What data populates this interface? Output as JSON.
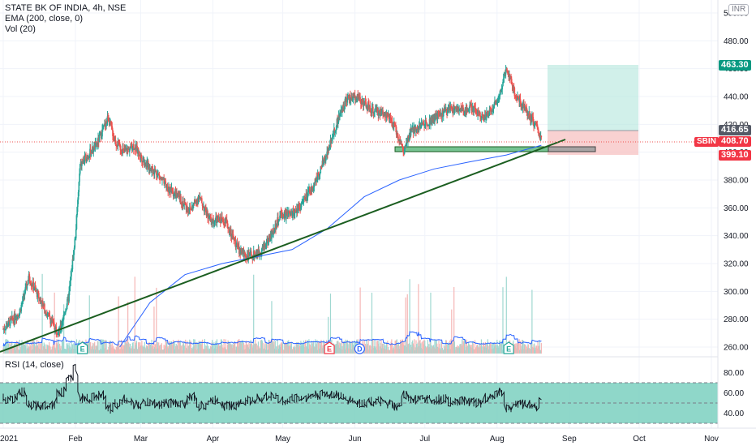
{
  "header": {
    "title": "STATE BK OF INDIA, 4h, NSE",
    "ema_label": "EMA (200, close, 0)",
    "vol_label": "Vol (20)",
    "currency": "INR"
  },
  "rsi": {
    "label": "RSI (14, close)",
    "upper_band": 70,
    "lower_band": 30,
    "mid_band": 50,
    "band_color": "#7bd0c0",
    "ticks": [
      "80.00",
      "60.00",
      "40.00"
    ]
  },
  "price_tags": {
    "target": {
      "text": "463.30",
      "value": 463.3,
      "color": "#089981"
    },
    "entry": {
      "text": "416.65",
      "value": 416.65,
      "color": "#555a66"
    },
    "symbol": {
      "text": "SBIN",
      "color": "#f23645"
    },
    "last": {
      "text": "408.70",
      "value": 408.7,
      "color": "#f23645"
    },
    "stop": {
      "text": "399.10",
      "value": 399.1,
      "color": "#f23645"
    }
  },
  "events": [
    {
      "letter": "E",
      "date": "2021-02-04",
      "color": "#26a69a"
    },
    {
      "letter": "E",
      "date": "2021-05-21",
      "color": "#f23645"
    },
    {
      "letter": "D",
      "date": "2021-06-03",
      "color": "#2962ff"
    },
    {
      "letter": "E",
      "date": "2021-08-06",
      "color": "#26a69a"
    }
  ],
  "colors": {
    "up": "#26a69a",
    "down": "#ef5350",
    "ema": "#2962ff",
    "trendline": "#1b5e20",
    "vol_ma": "#2962ff"
  },
  "chart_data": {
    "type": "line",
    "title": "STATE BK OF INDIA, 4h, NSE",
    "xlabel": "",
    "ylabel": "",
    "ylim": [
      250,
      505
    ],
    "x_tick_labels": [
      "2021",
      "Feb",
      "Mar",
      "Apr",
      "May",
      "Jun",
      "Jul",
      "Aug",
      "Sep",
      "Oct",
      "Nov"
    ],
    "y_tick_labels": [
      "260.00",
      "280.00",
      "300.00",
      "320.00",
      "340.00",
      "360.00",
      "380.00",
      "400.00",
      "420.00",
      "440.00",
      "460.00",
      "480.00",
      "500.00"
    ],
    "y_ticks": [
      260,
      280,
      300,
      320,
      340,
      360,
      380,
      400,
      420,
      440,
      460,
      480,
      500
    ],
    "series": [
      {
        "name": "SBIN",
        "x": [
          "2021-01-01",
          "2021-01-08",
          "2021-01-12",
          "2021-01-15",
          "2021-01-20",
          "2021-01-25",
          "2021-01-29",
          "2021-02-01",
          "2021-02-03",
          "2021-02-05",
          "2021-02-10",
          "2021-02-15",
          "2021-02-18",
          "2021-02-22",
          "2021-02-26",
          "2021-03-03",
          "2021-03-08",
          "2021-03-12",
          "2021-03-17",
          "2021-03-22",
          "2021-03-26",
          "2021-03-31",
          "2021-04-06",
          "2021-04-12",
          "2021-04-16",
          "2021-04-21",
          "2021-04-26",
          "2021-04-30",
          "2021-05-05",
          "2021-05-10",
          "2021-05-14",
          "2021-05-19",
          "2021-05-24",
          "2021-05-28",
          "2021-06-02",
          "2021-06-08",
          "2021-06-14",
          "2021-06-18",
          "2021-06-22",
          "2021-06-25",
          "2021-06-30",
          "2021-07-06",
          "2021-07-12",
          "2021-07-16",
          "2021-07-21",
          "2021-07-27",
          "2021-08-02",
          "2021-08-05",
          "2021-08-09",
          "2021-08-13",
          "2021-08-18",
          "2021-08-20"
        ],
        "values": [
          273,
          285,
          310,
          300,
          283,
          270,
          295,
          340,
          390,
          395,
          405,
          425,
          408,
          400,
          405,
          392,
          385,
          375,
          368,
          358,
          368,
          350,
          352,
          330,
          325,
          328,
          340,
          355,
          355,
          365,
          375,
          395,
          420,
          438,
          440,
          430,
          428,
          418,
          400,
          415,
          420,
          425,
          432,
          430,
          432,
          425,
          440,
          462,
          440,
          432,
          418,
          408.7
        ]
      },
      {
        "name": "EMA (200, close, 0)",
        "x": [
          "2021-02-20",
          "2021-03-05",
          "2021-03-20",
          "2021-04-05",
          "2021-04-20",
          "2021-05-05",
          "2021-05-20",
          "2021-06-05",
          "2021-06-20",
          "2021-07-05",
          "2021-07-20",
          "2021-08-05",
          "2021-08-20"
        ],
        "values": [
          260,
          292,
          312,
          320,
          325,
          330,
          345,
          368,
          380,
          388,
          393,
          398,
          405
        ]
      }
    ]
  }
}
